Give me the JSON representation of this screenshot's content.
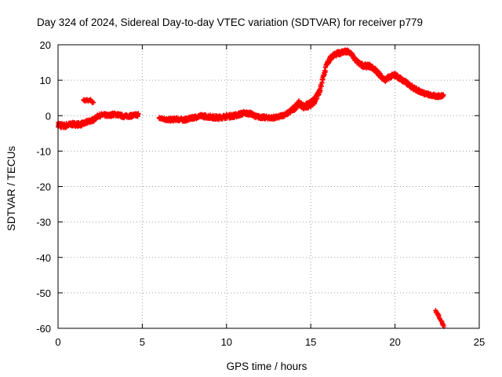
{
  "chart_data": {
    "type": "scatter",
    "title": "Day 324 of 2024, Sidereal Day-to-day VTEC variation (SDTVAR) for receiver p779",
    "xlabel": "GPS time / hours",
    "ylabel": "SDTVAR / TECUs",
    "xlim": [
      0,
      25
    ],
    "ylim": [
      -60,
      20
    ],
    "xticks": [
      0,
      5,
      10,
      15,
      20,
      25
    ],
    "yticks": [
      -60,
      -50,
      -40,
      -30,
      -20,
      -10,
      0,
      10,
      20
    ],
    "grid": true,
    "legend": "none",
    "marker": "+",
    "color": "#ff0000",
    "series": [
      {
        "name": "p779",
        "band": [
          [
            0.0,
            -2.5,
            1.5
          ],
          [
            0.3,
            -3.0,
            1.5
          ],
          [
            0.6,
            -2.6,
            1.2
          ],
          [
            0.9,
            -2.4,
            1.2
          ],
          [
            1.2,
            -2.5,
            1.2
          ],
          [
            1.5,
            -2.3,
            1.2
          ],
          [
            1.8,
            -1.6,
            1.2
          ],
          [
            2.1,
            -1.2,
            1.0
          ],
          [
            2.4,
            0.0,
            1.0
          ],
          [
            2.7,
            0.2,
            1.0
          ],
          [
            3.0,
            0.0,
            1.0
          ],
          [
            3.3,
            0.4,
            1.0
          ],
          [
            3.6,
            0.2,
            1.0
          ],
          [
            3.9,
            -0.2,
            1.0
          ],
          [
            4.4,
            0.0,
            1.0
          ],
          [
            4.8,
            0.3,
            1.0
          ],
          [
            6.0,
            -0.7,
            0.6
          ],
          [
            6.6,
            -1.2,
            1.0
          ],
          [
            7.0,
            -1.0,
            1.0
          ],
          [
            7.5,
            -1.2,
            1.0
          ],
          [
            8.0,
            -0.6,
            1.0
          ],
          [
            8.5,
            -0.1,
            1.0
          ],
          [
            9.0,
            -0.3,
            1.2
          ],
          [
            9.5,
            -0.6,
            1.2
          ],
          [
            10.0,
            -0.2,
            1.2
          ],
          [
            10.5,
            0.0,
            1.2
          ],
          [
            11.0,
            0.7,
            1.2
          ],
          [
            11.4,
            0.6,
            1.0
          ],
          [
            11.8,
            -0.3,
            1.0
          ],
          [
            12.2,
            -0.5,
            1.0
          ],
          [
            12.6,
            -0.6,
            1.0
          ],
          [
            13.0,
            -0.5,
            1.0
          ],
          [
            13.3,
            0.0,
            1.0
          ],
          [
            13.6,
            0.6,
            1.0
          ],
          [
            14.0,
            2.0,
            1.5
          ],
          [
            14.3,
            3.5,
            1.5
          ],
          [
            14.6,
            2.5,
            1.5
          ],
          [
            14.9,
            3.0,
            2.0
          ],
          [
            15.2,
            4.0,
            2.0
          ],
          [
            15.4,
            6.0,
            2.0
          ],
          [
            15.6,
            8.0,
            2.0
          ],
          [
            15.7,
            10.5,
            1.5
          ],
          [
            16.0,
            15.0,
            1.5
          ],
          [
            16.3,
            17.0,
            1.2
          ],
          [
            16.6,
            17.5,
            1.2
          ],
          [
            16.9,
            18.0,
            1.2
          ],
          [
            17.2,
            18.0,
            1.2
          ],
          [
            17.4,
            17.5,
            1.0
          ],
          [
            17.6,
            16.0,
            1.0
          ],
          [
            17.9,
            14.5,
            1.2
          ],
          [
            18.2,
            14.0,
            1.2
          ],
          [
            18.5,
            14.0,
            1.2
          ],
          [
            18.8,
            13.0,
            1.2
          ],
          [
            19.1,
            11.5,
            1.2
          ],
          [
            19.4,
            10.0,
            1.2
          ],
          [
            19.7,
            11.0,
            1.2
          ],
          [
            20.0,
            11.5,
            1.2
          ],
          [
            20.3,
            10.5,
            1.2
          ],
          [
            20.6,
            9.5,
            1.2
          ],
          [
            20.9,
            8.5,
            1.2
          ],
          [
            21.2,
            7.5,
            1.2
          ],
          [
            21.5,
            6.8,
            1.0
          ],
          [
            21.8,
            6.2,
            1.0
          ],
          [
            22.1,
            5.8,
            1.0
          ],
          [
            22.4,
            5.5,
            1.0
          ],
          [
            22.7,
            5.5,
            1.0
          ],
          [
            22.9,
            6.0,
            1.0
          ]
        ],
        "fragments": [
          [
            [
              1.5,
              4.3
            ],
            [
              1.9,
              4.4
            ],
            [
              2.1,
              3.7
            ]
          ],
          [
            [
              22.4,
              -55.0
            ],
            [
              22.6,
              -56.5
            ],
            [
              22.8,
              -58.5
            ],
            [
              22.9,
              -59.5
            ]
          ]
        ]
      }
    ]
  }
}
